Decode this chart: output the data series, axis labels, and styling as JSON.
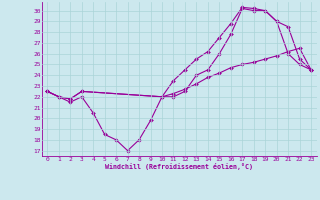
{
  "xlabel": "Windchill (Refroidissement éolien,°C)",
  "bg_color": "#cce8ee",
  "line_color": "#990099",
  "grid_color": "#aad4d8",
  "xlim": [
    -0.5,
    23.5
  ],
  "ylim": [
    16.5,
    30.8
  ],
  "yticks": [
    17,
    18,
    19,
    20,
    21,
    22,
    23,
    24,
    25,
    26,
    27,
    28,
    29,
    30
  ],
  "xticks": [
    0,
    1,
    2,
    3,
    4,
    5,
    6,
    7,
    8,
    9,
    10,
    11,
    12,
    13,
    14,
    15,
    16,
    17,
    18,
    19,
    20,
    21,
    22,
    23
  ],
  "line1_x": [
    0,
    1,
    2,
    3,
    4,
    5,
    6,
    7,
    8,
    9,
    10,
    11,
    12,
    13,
    14,
    15,
    16,
    17,
    18,
    19,
    20,
    21,
    22,
    23
  ],
  "line1_y": [
    22.5,
    22.0,
    21.5,
    22.0,
    20.5,
    18.5,
    18.0,
    17.0,
    18.0,
    19.8,
    22.0,
    22.0,
    22.5,
    24.0,
    24.5,
    26.0,
    27.8,
    30.2,
    30.0,
    30.0,
    29.0,
    26.0,
    25.0,
    24.5
  ],
  "line2_x": [
    0,
    1,
    2,
    3,
    10,
    11,
    12,
    13,
    14,
    15,
    16,
    17,
    18,
    19,
    20,
    21,
    22,
    23
  ],
  "line2_y": [
    22.5,
    22.0,
    21.8,
    22.5,
    22.0,
    23.5,
    24.5,
    25.5,
    26.2,
    27.5,
    28.8,
    30.3,
    30.2,
    30.0,
    29.0,
    28.5,
    25.5,
    24.5
  ],
  "line3_x": [
    0,
    1,
    2,
    3,
    10,
    11,
    12,
    13,
    14,
    15,
    16,
    17,
    18,
    19,
    20,
    21,
    22,
    23
  ],
  "line3_y": [
    22.5,
    22.0,
    21.8,
    22.5,
    22.0,
    22.3,
    22.7,
    23.2,
    23.8,
    24.2,
    24.7,
    25.0,
    25.2,
    25.5,
    25.8,
    26.2,
    26.5,
    24.5
  ]
}
